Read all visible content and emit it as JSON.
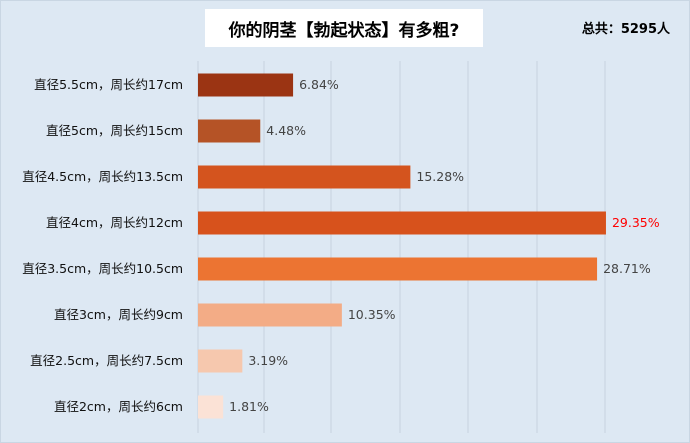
{
  "chart_data": {
    "type": "bar",
    "orientation": "horizontal",
    "title": "你的阴茎【勃起状态】有多粗?",
    "total_label": "总共：5295人",
    "categories": [
      "直径5.5cm，周长约17cm",
      "直径5cm，周长约15cm",
      "直径4.5cm，周长约13.5cm",
      "直径4cm，周长约12cm",
      "直径3.5cm，周长约10.5cm",
      "直径3cm，周长约9cm",
      "直径2.5cm，周长约7.5cm",
      "直径2cm，周长约6cm"
    ],
    "values": [
      6.84,
      4.48,
      15.28,
      29.35,
      28.71,
      10.35,
      3.19,
      1.81
    ],
    "value_labels": [
      "6.84%",
      "4.48%",
      "15.28%",
      "29.35%",
      "28.71%",
      "10.35%",
      "3.19%",
      "1.81%"
    ],
    "bar_colors": [
      "#9b3413",
      "#b55326",
      "#d4541e",
      "#d7521c",
      "#ec7432",
      "#f3ac86",
      "#f6c8ae",
      "#fbe2d6"
    ],
    "label_colors": [
      "#444444",
      "#444444",
      "#444444",
      "#ff0000",
      "#444444",
      "#444444",
      "#444444",
      "#444444"
    ],
    "xlim": [
      0,
      30
    ],
    "grid": true,
    "legend": "none"
  }
}
